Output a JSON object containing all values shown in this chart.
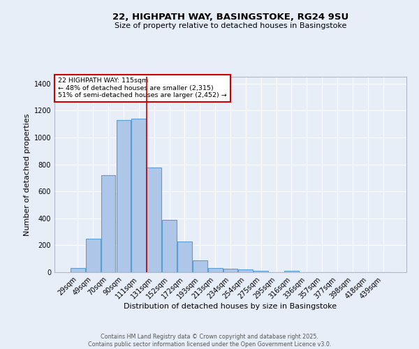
{
  "title_line1": "22, HIGHPATH WAY, BASINGSTOKE, RG24 9SU",
  "title_line2": "Size of property relative to detached houses in Basingstoke",
  "xlabel": "Distribution of detached houses by size in Basingstoke",
  "ylabel": "Number of detached properties",
  "bar_color": "#aec6e8",
  "bar_edge_color": "#5a9fd4",
  "background_color": "#e8eef8",
  "grid_color": "#ffffff",
  "categories": [
    "29sqm",
    "49sqm",
    "70sqm",
    "90sqm",
    "111sqm",
    "131sqm",
    "152sqm",
    "172sqm",
    "193sqm",
    "213sqm",
    "234sqm",
    "254sqm",
    "275sqm",
    "295sqm",
    "316sqm",
    "336sqm",
    "357sqm",
    "377sqm",
    "398sqm",
    "418sqm",
    "439sqm"
  ],
  "values": [
    30,
    248,
    720,
    1130,
    1140,
    775,
    390,
    230,
    90,
    33,
    26,
    20,
    12,
    0,
    8,
    0,
    0,
    0,
    0,
    0,
    0
  ],
  "red_line_x": 4.5,
  "annotation_text": "22 HIGHPATH WAY: 115sqm\n← 48% of detached houses are smaller (2,315)\n51% of semi-detached houses are larger (2,452) →",
  "annotation_box_color": "#ffffff",
  "annotation_border_color": "#cc0000",
  "footer_line1": "Contains HM Land Registry data © Crown copyright and database right 2025.",
  "footer_line2": "Contains public sector information licensed under the Open Government Licence v3.0.",
  "ylim": [
    0,
    1450
  ],
  "yticks": [
    0,
    200,
    400,
    600,
    800,
    1000,
    1200,
    1400
  ]
}
